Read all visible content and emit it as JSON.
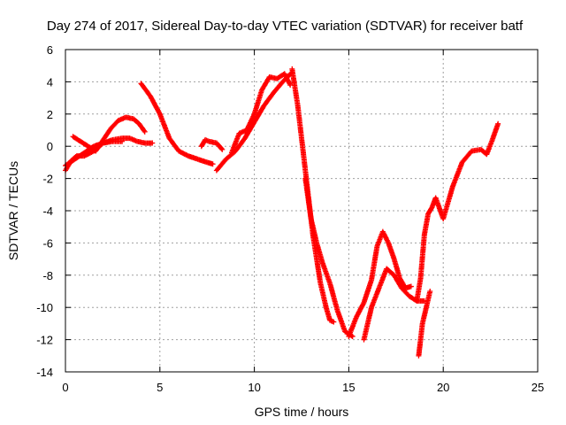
{
  "chart_data": {
    "type": "scatter",
    "title": "Day 274 of 2017, Sidereal Day-to-day VTEC variation (SDTVAR) for receiver batf",
    "xlabel": "GPS time / hours",
    "ylabel": "SDTVAR / TECUs",
    "xlim": [
      0,
      25
    ],
    "ylim": [
      -14,
      6
    ],
    "xticks": [
      "0",
      "5",
      "10",
      "15",
      "20",
      "25"
    ],
    "yticks": [
      "6",
      "4",
      "2",
      "0",
      "-2",
      "-4",
      "-6",
      "-8",
      "-10",
      "-12",
      "-14"
    ],
    "grid": true,
    "marker": "plus",
    "color": "#ff0000",
    "series": [
      {
        "x": [
          0.0,
          0.3,
          0.6,
          1.0,
          1.5,
          2.0,
          2.5,
          3.0,
          3.4,
          3.8,
          4.2,
          4.6
        ],
        "values": [
          -1.5,
          -0.9,
          -0.6,
          -0.6,
          -0.3,
          0.2,
          0.4,
          0.5,
          0.5,
          0.3,
          0.2,
          0.2
        ]
      },
      {
        "x": [
          0.4,
          0.8,
          1.2,
          1.6,
          2.0,
          2.4,
          2.8,
          3.2,
          3.6,
          3.9,
          4.2
        ],
        "values": [
          0.6,
          0.3,
          0.0,
          -0.3,
          0.4,
          1.1,
          1.6,
          1.8,
          1.7,
          1.4,
          0.9
        ]
      },
      {
        "x": [
          0.0,
          0.5,
          1.0,
          1.5,
          2.0,
          2.5,
          3.0
        ],
        "values": [
          -1.2,
          -0.8,
          -0.4,
          0.0,
          0.2,
          0.3,
          0.3
        ]
      },
      {
        "x": [
          4.0,
          4.5,
          5.0,
          5.5,
          6.0,
          6.5,
          7.0,
          7.5,
          7.8
        ],
        "values": [
          3.9,
          3.1,
          2.0,
          0.5,
          -0.3,
          -0.6,
          -0.8,
          -1.0,
          -1.1
        ]
      },
      {
        "x": [
          7.2,
          7.4,
          7.6,
          8.0,
          8.3
        ],
        "values": [
          0.0,
          0.4,
          0.3,
          0.2,
          -0.2
        ]
      },
      {
        "x": [
          8.0,
          8.5,
          9.0,
          9.5,
          10.0,
          10.5,
          11.0,
          11.5,
          12.0
        ],
        "values": [
          -1.5,
          -0.8,
          -0.3,
          0.5,
          1.5,
          2.5,
          3.3,
          4.0,
          4.6
        ]
      },
      {
        "x": [
          8.8,
          9.2,
          9.6,
          10.0,
          10.4,
          10.8,
          11.2,
          11.6,
          11.9
        ],
        "values": [
          -0.4,
          0.8,
          1.0,
          2.0,
          3.5,
          4.3,
          4.2,
          4.5,
          3.8
        ]
      },
      {
        "x": [
          12.0,
          12.3,
          12.6,
          12.9,
          13.1,
          13.3,
          13.5,
          13.8,
          14.0,
          14.2
        ],
        "values": [
          4.8,
          2.5,
          -0.5,
          -3.5,
          -5.5,
          -7.0,
          -8.5,
          -10.0,
          -10.8,
          -10.9
        ]
      },
      {
        "x": [
          12.7,
          13.0,
          13.3,
          13.6,
          14.0,
          14.4,
          14.8,
          15.2
        ],
        "values": [
          -2.0,
          -4.5,
          -6.0,
          -7.2,
          -8.5,
          -10.2,
          -11.5,
          -11.8
        ]
      },
      {
        "x": [
          15.0,
          15.4,
          15.8,
          16.2,
          16.5,
          16.8,
          17.1,
          17.4,
          17.7,
          18.0,
          18.3
        ],
        "values": [
          -11.8,
          -10.6,
          -9.7,
          -8.3,
          -6.2,
          -5.3,
          -6.0,
          -7.0,
          -8.2,
          -8.8,
          -8.7
        ]
      },
      {
        "x": [
          15.8,
          16.2,
          16.6,
          17.0,
          17.4,
          17.8,
          18.2,
          18.6,
          19.0
        ],
        "values": [
          -12.0,
          -10.0,
          -8.8,
          -7.6,
          -8.0,
          -8.8,
          -9.3,
          -9.6,
          -9.6
        ]
      },
      {
        "x": [
          18.6,
          18.8,
          19.0,
          19.2,
          19.4,
          19.6,
          20.0,
          20.5,
          21.0,
          21.5,
          22.0,
          22.3,
          22.6,
          22.9
        ],
        "values": [
          -9.6,
          -8.2,
          -5.5,
          -4.2,
          -3.8,
          -3.2,
          -4.5,
          -2.5,
          -1.0,
          -0.3,
          -0.2,
          -0.5,
          0.4,
          1.4
        ]
      },
      {
        "x": [
          18.7,
          18.8,
          18.9,
          19.0,
          19.1,
          19.3
        ],
        "values": [
          -13.0,
          -12.0,
          -11.0,
          -10.5,
          -10.0,
          -9.0
        ]
      }
    ]
  }
}
